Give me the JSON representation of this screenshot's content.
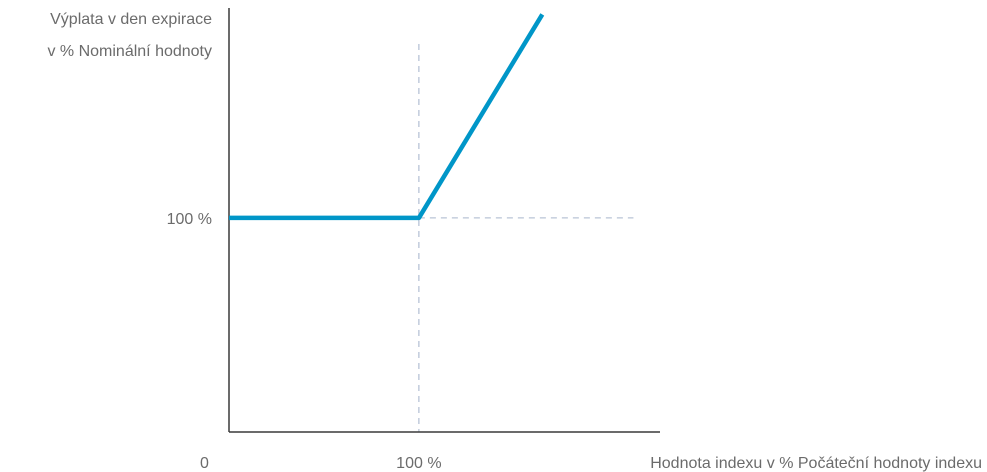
{
  "chart_data": {
    "type": "line",
    "ylabel": [
      "Výplata v den expirace",
      "v % Nominální hodnoty"
    ],
    "xlabel": "Hodnota indexu v % Počáteční hodnoty indexu",
    "x_ticks": [
      {
        "value": 0,
        "label": "0"
      },
      {
        "value": 100,
        "label": "100 %"
      }
    ],
    "y_ticks": [
      {
        "value": 100,
        "label": "100 %"
      }
    ],
    "xlim": [
      0,
      227
    ],
    "ylim": [
      0,
      198
    ],
    "grid": false,
    "reference_lines": [
      {
        "axis": "x",
        "value": 100
      },
      {
        "axis": "y",
        "value": 100
      }
    ],
    "series": [
      {
        "color": "#0096c8",
        "x": [
          0,
          100,
          165
        ],
        "y": [
          100,
          100,
          195
        ]
      }
    ]
  }
}
